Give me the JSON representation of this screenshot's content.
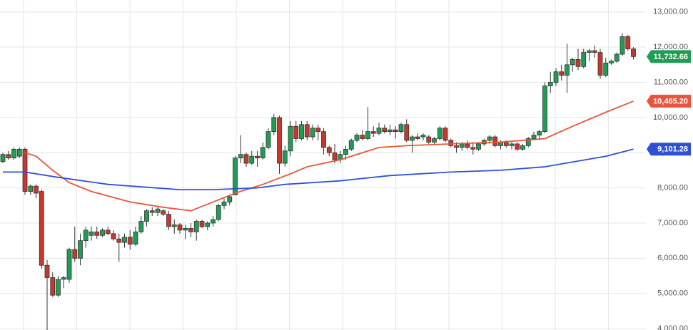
{
  "chart_data": {
    "type": "candlestick",
    "ylim": [
      3900,
      13300
    ],
    "yticks": [
      {
        "value": 4000,
        "label": "4,000.00"
      },
      {
        "value": 5000,
        "label": "5,000.00"
      },
      {
        "value": 6000,
        "label": "6,000.00"
      },
      {
        "value": 7000,
        "label": "7,000.00"
      },
      {
        "value": 8000,
        "label": "8,000.00"
      },
      {
        "value": 9000,
        "label": "9,000.00"
      },
      {
        "value": 10000,
        "label": "10,000.00"
      },
      {
        "value": 11000,
        "label": "11,000.00"
      },
      {
        "value": 12000,
        "label": "12,000.00"
      },
      {
        "value": 13000,
        "label": "13,000.00"
      }
    ],
    "grid": true,
    "up_color": "#1f9d55",
    "down_color": "#c8372d",
    "candles": [
      [
        8750,
        9000,
        8700,
        8950
      ],
      [
        8950,
        9050,
        8800,
        8850
      ],
      [
        8850,
        9150,
        8800,
        9100
      ],
      [
        8900,
        9150,
        8850,
        9100
      ],
      [
        9100,
        9150,
        7800,
        7900
      ],
      [
        7900,
        8100,
        7800,
        8050
      ],
      [
        8050,
        8100,
        7700,
        7850
      ],
      [
        7900,
        7950,
        5700,
        5800
      ],
      [
        5800,
        5950,
        3950,
        5450
      ],
      [
        5450,
        5600,
        4900,
        4950
      ],
      [
        4950,
        5500,
        4900,
        5400
      ],
      [
        5400,
        5500,
        5150,
        5450
      ],
      [
        5400,
        6300,
        5300,
        6250
      ],
      [
        6250,
        6900,
        5900,
        6000
      ],
      [
        6000,
        6700,
        5800,
        6500
      ],
      [
        6500,
        6900,
        6300,
        6800
      ],
      [
        6650,
        6900,
        6500,
        6750
      ],
      [
        6750,
        6900,
        6550,
        6650
      ],
      [
        6650,
        6850,
        6600,
        6800
      ],
      [
        6800,
        6900,
        6650,
        6700
      ],
      [
        6700,
        6800,
        6500,
        6550
      ],
      [
        6550,
        6700,
        5900,
        6450
      ],
      [
        6450,
        6700,
        6300,
        6600
      ],
      [
        6600,
        6800,
        6250,
        6400
      ],
      [
        6400,
        6900,
        6350,
        6750
      ],
      [
        6750,
        7200,
        6700,
        7050
      ],
      [
        7050,
        7400,
        6900,
        7350
      ],
      [
        7350,
        7450,
        7200,
        7300
      ],
      [
        7300,
        7450,
        7200,
        7400
      ],
      [
        7350,
        7400,
        7200,
        7250
      ],
      [
        7250,
        7350,
        6800,
        6900
      ],
      [
        6900,
        7100,
        6700,
        6950
      ],
      [
        6950,
        7000,
        6700,
        6800
      ],
      [
        6800,
        6950,
        6550,
        6850
      ],
      [
        6850,
        7000,
        6600,
        6750
      ],
      [
        6750,
        7100,
        6500,
        7050
      ],
      [
        7050,
        7100,
        6850,
        6900
      ],
      [
        6900,
        7050,
        6800,
        7000
      ],
      [
        7000,
        7200,
        6900,
        7100
      ],
      [
        7100,
        7550,
        7050,
        7500
      ],
      [
        7500,
        7700,
        7400,
        7600
      ],
      [
        7600,
        7800,
        7500,
        7750
      ],
      [
        7800,
        8900,
        7800,
        8850
      ],
      [
        8850,
        9500,
        8700,
        8950
      ],
      [
        8950,
        9000,
        8600,
        8700
      ],
      [
        8700,
        9050,
        8650,
        8900
      ],
      [
        8900,
        9050,
        8600,
        8850
      ],
      [
        8850,
        9300,
        8800,
        9150
      ],
      [
        9150,
        9700,
        9100,
        9600
      ],
      [
        9600,
        10100,
        9500,
        10000
      ],
      [
        10000,
        10050,
        8400,
        8700
      ],
      [
        8700,
        9200,
        8600,
        9050
      ],
      [
        9050,
        9900,
        8900,
        9750
      ],
      [
        9750,
        9900,
        9300,
        9400
      ],
      [
        9400,
        9900,
        9350,
        9800
      ],
      [
        9800,
        9900,
        9350,
        9450
      ],
      [
        9450,
        9800,
        9350,
        9700
      ],
      [
        9700,
        9800,
        9350,
        9600
      ],
      [
        9600,
        9700,
        8950,
        9150
      ],
      [
        9150,
        9200,
        8900,
        9000
      ],
      [
        9000,
        9250,
        8700,
        8800
      ],
      [
        8800,
        9050,
        8700,
        8950
      ],
      [
        8950,
        9200,
        8800,
        9100
      ],
      [
        9100,
        9400,
        9050,
        9350
      ],
      [
        9350,
        9550,
        9300,
        9500
      ],
      [
        9500,
        9650,
        9350,
        9400
      ],
      [
        9400,
        10300,
        9350,
        9600
      ],
      [
        9600,
        9750,
        9450,
        9550
      ],
      [
        9550,
        9850,
        9500,
        9700
      ],
      [
        9700,
        9800,
        9550,
        9600
      ],
      [
        9600,
        9800,
        9500,
        9650
      ],
      [
        9650,
        9750,
        9400,
        9600
      ],
      [
        9600,
        9850,
        9550,
        9800
      ],
      [
        9800,
        9950,
        9300,
        9350
      ],
      [
        9350,
        9500,
        9000,
        9450
      ],
      [
        9450,
        9550,
        9350,
        9400
      ],
      [
        9450,
        9550,
        9350,
        9500
      ],
      [
        9450,
        9500,
        9250,
        9300
      ],
      [
        9300,
        9450,
        9250,
        9400
      ],
      [
        9400,
        9750,
        9350,
        9700
      ],
      [
        9700,
        9750,
        9300,
        9350
      ],
      [
        9350,
        9400,
        9150,
        9200
      ],
      [
        9200,
        9300,
        9000,
        9150
      ],
      [
        9150,
        9300,
        9050,
        9250
      ],
      [
        9250,
        9350,
        9100,
        9150
      ],
      [
        9150,
        9300,
        8950,
        9100
      ],
      [
        9100,
        9300,
        9050,
        9250
      ],
      [
        9250,
        9400,
        9200,
        9350
      ],
      [
        9350,
        9500,
        9250,
        9450
      ],
      [
        9450,
        9500,
        9150,
        9200
      ],
      [
        9200,
        9350,
        9100,
        9300
      ],
      [
        9300,
        9350,
        9150,
        9200
      ],
      [
        9200,
        9300,
        9100,
        9250
      ],
      [
        9250,
        9300,
        9050,
        9100
      ],
      [
        9100,
        9250,
        9050,
        9200
      ],
      [
        9200,
        9450,
        9150,
        9400
      ],
      [
        9400,
        9600,
        9350,
        9500
      ],
      [
        9500,
        9650,
        9400,
        9600
      ],
      [
        9600,
        11000,
        9550,
        10900
      ],
      [
        10900,
        11300,
        10700,
        11000
      ],
      [
        11000,
        11400,
        10900,
        11300
      ],
      [
        11300,
        11500,
        11050,
        11200
      ],
      [
        11200,
        12100,
        10700,
        11500
      ],
      [
        11500,
        11700,
        11300,
        11650
      ],
      [
        11650,
        11950,
        11350,
        11450
      ],
      [
        11450,
        11950,
        11400,
        11850
      ],
      [
        11850,
        11950,
        11600,
        11900
      ],
      [
        11900,
        12050,
        11700,
        11850
      ],
      [
        11850,
        11950,
        11100,
        11200
      ],
      [
        11200,
        11700,
        11150,
        11550
      ],
      [
        11550,
        11650,
        11500,
        11600
      ],
      [
        11600,
        11850,
        11550,
        11800
      ],
      [
        11800,
        12400,
        11750,
        12300
      ],
      [
        12300,
        12350,
        11900,
        11950
      ],
      [
        11950,
        12000,
        11650,
        11732.66
      ]
    ],
    "last_badge": {
      "value": 11732.66,
      "label": "11,732.66",
      "color": "#1f9d55"
    },
    "series": [
      {
        "color": "#e8553a",
        "x": [
          4,
          6,
          9,
          12,
          16,
          23,
          29,
          34,
          38,
          42,
          47,
          52,
          55,
          61,
          68,
          73,
          81,
          90,
          98,
          103,
          109,
          114
        ],
        "values": [
          9000,
          8900,
          8500,
          8150,
          7900,
          7600,
          7450,
          7350,
          7600,
          7850,
          8100,
          8400,
          8600,
          8800,
          9150,
          9200,
          9250,
          9300,
          9400,
          9750,
          10150,
          10465.2
        ],
        "badge": {
          "value": 10465.2,
          "label": "10,465.20"
        }
      },
      {
        "color": "#2f4fd6",
        "x": [
          0,
          4,
          10,
          19,
          32,
          38,
          46,
          51,
          61,
          70,
          81,
          90,
          98,
          109,
          114
        ],
        "values": [
          8450,
          8450,
          8300,
          8100,
          7950,
          7950,
          8000,
          8100,
          8200,
          8350,
          8450,
          8500,
          8600,
          8900,
          9101.28
        ],
        "badge": {
          "value": 9101.28,
          "label": "9,101.28"
        }
      }
    ]
  }
}
